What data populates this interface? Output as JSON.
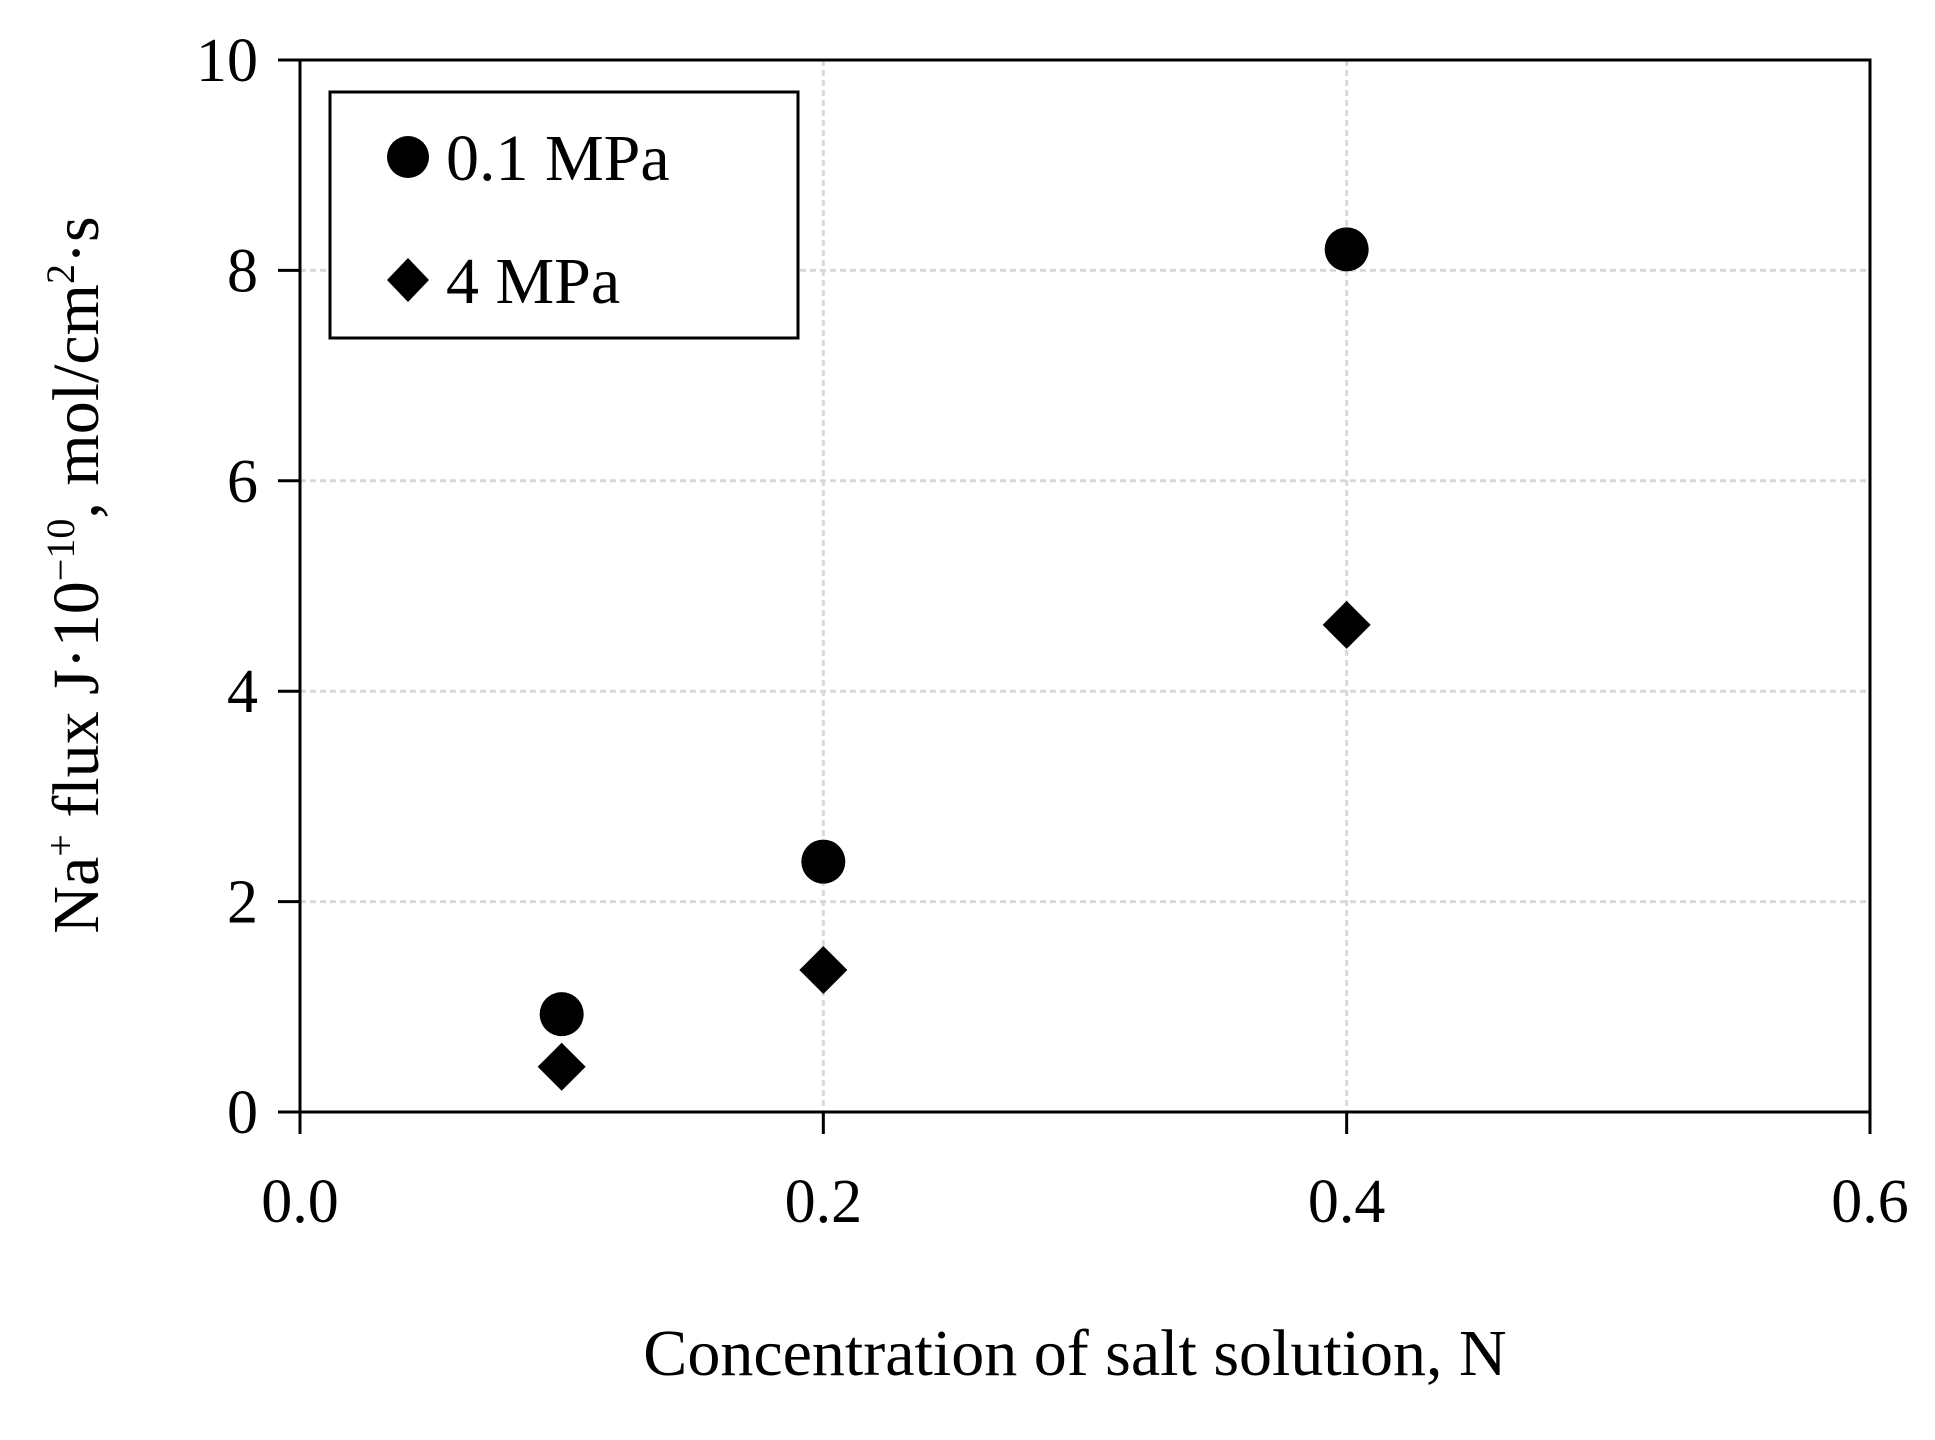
{
  "chart_data": {
    "type": "scatter",
    "title": "",
    "xlabel": "Concentration of salt solution, N",
    "ylabel": {
      "p1": "Na",
      "p2": "+",
      "p3": " flux J·10",
      "p4": "−10",
      "p5": ", mol/cm",
      "p6": "2",
      "p7": "·s"
    },
    "xlim": [
      0,
      0.6
    ],
    "ylim": [
      0,
      10
    ],
    "x_ticks": [
      "0.0",
      "0.2",
      "0.4",
      "0.6"
    ],
    "y_ticks": [
      "0",
      "2",
      "4",
      "6",
      "8",
      "10"
    ],
    "x_tick_values": [
      0,
      0.2,
      0.4,
      0.6
    ],
    "y_tick_values": [
      0,
      2,
      4,
      6,
      8,
      10
    ],
    "grid": true,
    "legend_position": "top-left",
    "series": [
      {
        "name": "0.1 MPa",
        "marker": "circle",
        "color": "#000000",
        "x": [
          0.1,
          0.2,
          0.4
        ],
        "y": [
          0.93,
          2.38,
          8.2
        ]
      },
      {
        "name": "4 MPa",
        "marker": "diamond",
        "color": "#000000",
        "x": [
          0.1,
          0.2,
          0.4
        ],
        "y": [
          0.43,
          1.35,
          4.63
        ]
      }
    ]
  }
}
